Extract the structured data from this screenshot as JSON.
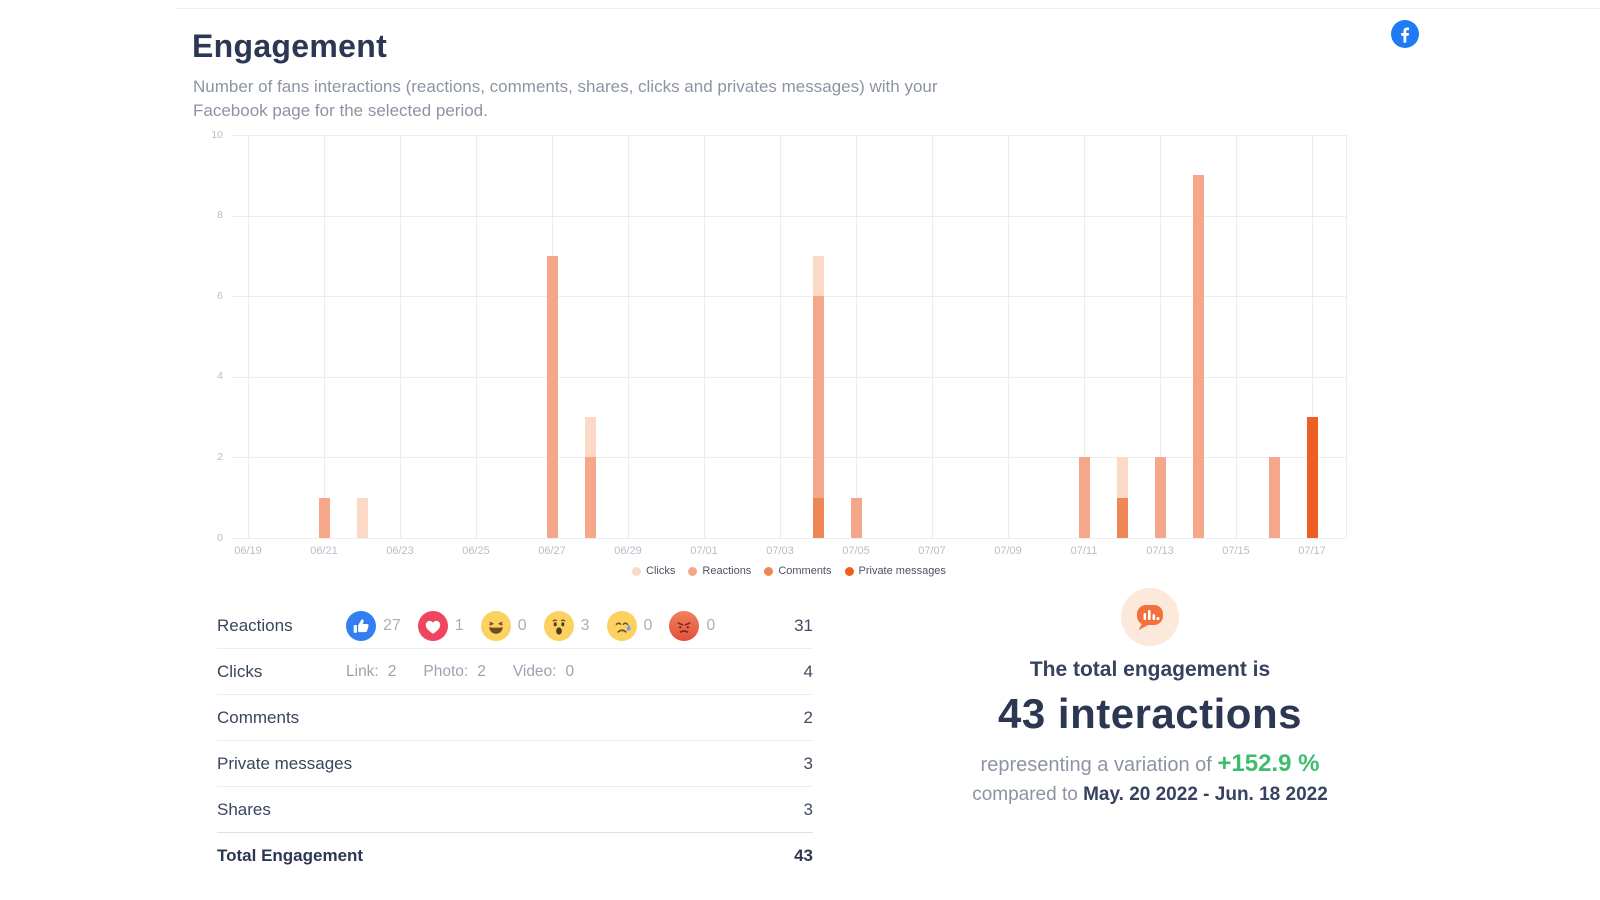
{
  "header": {
    "title": "Engagement",
    "subtitle": "Number of fans interactions (reactions, comments, shares, clicks and privates messages) with your Facebook page for the selected period."
  },
  "chart_data": {
    "type": "bar",
    "stacked": true,
    "x": [
      "06/19",
      "06/20",
      "06/21",
      "06/22",
      "06/23",
      "06/24",
      "06/25",
      "06/26",
      "06/27",
      "06/28",
      "06/29",
      "06/30",
      "07/01",
      "07/02",
      "07/03",
      "07/04",
      "07/05",
      "07/06",
      "07/07",
      "07/08",
      "07/09",
      "07/10",
      "07/11",
      "07/12",
      "07/13",
      "07/14",
      "07/15",
      "07/16",
      "07/17"
    ],
    "x_tick_every": 2,
    "ylim": [
      0,
      10
    ],
    "yticks": [
      0,
      2,
      4,
      6,
      8,
      10
    ],
    "grid": true,
    "legend_position": "bottom",
    "series": [
      {
        "name": "Clicks",
        "color": "#fbd9c6",
        "values": [
          0,
          0,
          0,
          1,
          0,
          0,
          0,
          0,
          0,
          1,
          0,
          0,
          0,
          0,
          0,
          1,
          0,
          0,
          0,
          0,
          0,
          0,
          0,
          1,
          0,
          0,
          0,
          0,
          0
        ]
      },
      {
        "name": "Reactions",
        "color": "#f5a78a",
        "values": [
          0,
          0,
          1,
          0,
          0,
          0,
          0,
          0,
          7,
          2,
          0,
          0,
          0,
          0,
          0,
          5,
          1,
          0,
          0,
          0,
          0,
          0,
          2,
          0,
          2,
          9,
          0,
          2,
          0
        ]
      },
      {
        "name": "Comments",
        "color": "#ee8656",
        "values": [
          0,
          0,
          0,
          0,
          0,
          0,
          0,
          0,
          0,
          0,
          0,
          0,
          0,
          0,
          0,
          1,
          0,
          0,
          0,
          0,
          0,
          0,
          0,
          1,
          0,
          0,
          0,
          0,
          0
        ]
      },
      {
        "name": "Private messages",
        "color": "#ee5f23",
        "values": [
          0,
          0,
          0,
          0,
          0,
          0,
          0,
          0,
          0,
          0,
          0,
          0,
          0,
          0,
          0,
          0,
          0,
          0,
          0,
          0,
          0,
          0,
          0,
          0,
          0,
          0,
          0,
          0,
          3
        ]
      }
    ],
    "stack_order_bottom_to_top": [
      "Private messages",
      "Comments",
      "Reactions",
      "Clicks"
    ]
  },
  "engagement_table": {
    "rows": [
      {
        "label": "Reactions",
        "value": "31"
      },
      {
        "label": "Clicks",
        "value": "4"
      },
      {
        "label": "Comments",
        "value": "2"
      },
      {
        "label": "Private messages",
        "value": "3"
      },
      {
        "label": "Shares",
        "value": "3"
      },
      {
        "label": "Total Engagement",
        "value": "43"
      }
    ],
    "reactions_breakdown": [
      {
        "type": "like",
        "count": "27"
      },
      {
        "type": "love",
        "count": "1"
      },
      {
        "type": "haha",
        "count": "0"
      },
      {
        "type": "wow",
        "count": "3"
      },
      {
        "type": "sad",
        "count": "0"
      },
      {
        "type": "angry",
        "count": "0"
      }
    ],
    "clicks_breakdown": [
      {
        "label": "Link:",
        "count": "2"
      },
      {
        "label": "Photo:",
        "count": "2"
      },
      {
        "label": "Video:",
        "count": "0"
      }
    ]
  },
  "summary": {
    "line1": "The total engagement is",
    "headline": "43 interactions",
    "variation_prefix": "representing a variation of",
    "variation_value": "+152.9 %",
    "comparison_prefix": "compared to",
    "comparison_period": "May. 20 2022 - Jun. 18 2022"
  },
  "colors": {
    "accent_green": "#3fbd6f",
    "facebook_blue": "#1f7bf4",
    "navy_text": "#2c3853"
  }
}
